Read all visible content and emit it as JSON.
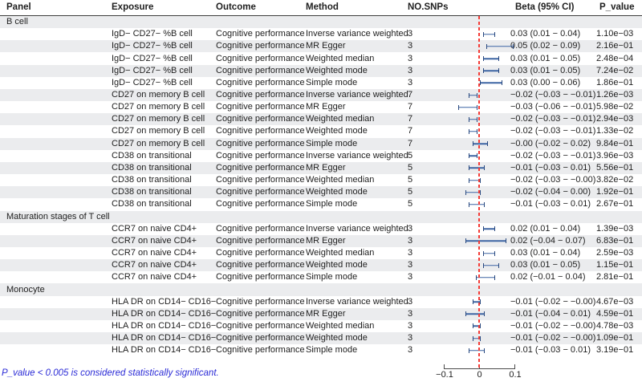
{
  "header": {
    "columns": [
      "Panel",
      "Exposure",
      "Outcome",
      "Method",
      "NO.SNPs",
      "Beta (95% CI)",
      "P_value"
    ]
  },
  "axis": {
    "min": -0.1,
    "max": 0.1,
    "ticks": [
      -0.1,
      0,
      0.1
    ],
    "tick_labels": [
      "−0.1",
      "0",
      "0.1"
    ],
    "reference_line_x": 0
  },
  "colors": {
    "whisker_bar": "#3d65a3",
    "whisker_cap": "#27477e",
    "reference_line": "#f53b36",
    "row_stripe": "#ebecee",
    "footnote_text": "#2a2ad6"
  },
  "footnote": "P_value < 0.005 is considered statistically significant.",
  "rows": [
    {
      "type": "panel",
      "panel": "B cell"
    },
    {
      "type": "data",
      "exposure": "IgD− CD27− %B cell",
      "outcome": "Cognitive performance",
      "method": "Inverse variance weighted",
      "nsnps": "3",
      "ci": [
        0.01,
        0.04
      ],
      "beta": 0.03,
      "beta_label": "0.03 (0.01 − 0.04)",
      "p": "1.10e−03"
    },
    {
      "type": "data",
      "exposure": "IgD− CD27− %B cell",
      "outcome": "Cognitive performance",
      "method": "MR Egger",
      "nsnps": "3",
      "ci": [
        0.02,
        0.09
      ],
      "beta": 0.05,
      "beta_label": "0.05 (0.02 − 0.09)",
      "p": "2.16e−01"
    },
    {
      "type": "data",
      "exposure": "IgD− CD27− %B cell",
      "outcome": "Cognitive performance",
      "method": "Weighted median",
      "nsnps": "3",
      "ci": [
        0.01,
        0.05
      ],
      "beta": 0.03,
      "beta_label": "0.03 (0.01 − 0.05)",
      "p": "2.48e−04"
    },
    {
      "type": "data",
      "exposure": "IgD− CD27− %B cell",
      "outcome": "Cognitive performance",
      "method": "Weighted mode",
      "nsnps": "3",
      "ci": [
        0.01,
        0.05
      ],
      "beta": 0.03,
      "beta_label": "0.03 (0.01 − 0.05)",
      "p": "7.24e−02"
    },
    {
      "type": "data",
      "exposure": "IgD− CD27− %B cell",
      "outcome": "Cognitive performance",
      "method": "Simple mode",
      "nsnps": "3",
      "ci": [
        0.0,
        0.06
      ],
      "beta": 0.03,
      "beta_label": "0.03 (0.00 − 0.06)",
      "p": "1.86e−01"
    },
    {
      "type": "data",
      "exposure": "CD27 on memory B cell",
      "outcome": "Cognitive performance",
      "method": "Inverse variance weighted",
      "nsnps": "7",
      "ci": [
        -0.03,
        -0.01
      ],
      "beta": -0.02,
      "beta_label": "−0.02 (−0.03 − −0.01)",
      "p": "1.26e−03"
    },
    {
      "type": "data",
      "exposure": "CD27 on memory B cell",
      "outcome": "Cognitive performance",
      "method": "MR Egger",
      "nsnps": "7",
      "ci": [
        -0.06,
        -0.01
      ],
      "beta": -0.03,
      "beta_label": "−0.03 (−0.06 − −0.01)",
      "p": "5.98e−02"
    },
    {
      "type": "data",
      "exposure": "CD27 on memory B cell",
      "outcome": "Cognitive performance",
      "method": "Weighted median",
      "nsnps": "7",
      "ci": [
        -0.03,
        -0.01
      ],
      "beta": -0.02,
      "beta_label": "−0.02 (−0.03 − −0.01)",
      "p": "2.94e−03"
    },
    {
      "type": "data",
      "exposure": "CD27 on memory B cell",
      "outcome": "Cognitive performance",
      "method": "Weighted mode",
      "nsnps": "7",
      "ci": [
        -0.03,
        -0.01
      ],
      "beta": -0.02,
      "beta_label": "−0.02 (−0.03 − −0.01)",
      "p": "1.33e−02"
    },
    {
      "type": "data",
      "exposure": "CD27 on memory B cell",
      "outcome": "Cognitive performance",
      "method": "Simple mode",
      "nsnps": "7",
      "ci": [
        -0.02,
        0.02
      ],
      "beta": 0.0,
      "beta_label": "−0.00 (−0.02 − 0.02)",
      "p": "9.84e−01"
    },
    {
      "type": "data",
      "exposure": "CD38 on transitional",
      "outcome": "Cognitive performance",
      "method": "Inverse variance weighted",
      "nsnps": "5",
      "ci": [
        -0.03,
        -0.01
      ],
      "beta": -0.02,
      "beta_label": "−0.02 (−0.03 − −0.01)",
      "p": "3.96e−03"
    },
    {
      "type": "data",
      "exposure": "CD38 on transitional",
      "outcome": "Cognitive performance",
      "method": "MR Egger",
      "nsnps": "5",
      "ci": [
        -0.03,
        0.01
      ],
      "beta": -0.01,
      "beta_label": "−0.01 (−0.03 − 0.01)",
      "p": "5.56e−01"
    },
    {
      "type": "data",
      "exposure": "CD38 on transitional",
      "outcome": "Cognitive performance",
      "method": "Weighted median",
      "nsnps": "5",
      "ci": [
        -0.03,
        0.0
      ],
      "beta": -0.02,
      "beta_label": "−0.02 (−0.03 − −0.00)",
      "p": "3.82e−02"
    },
    {
      "type": "data",
      "exposure": "CD38 on transitional",
      "outcome": "Cognitive performance",
      "method": "Weighted mode",
      "nsnps": "5",
      "ci": [
        -0.04,
        0.0
      ],
      "beta": -0.02,
      "beta_label": "−0.02 (−0.04 − 0.00)",
      "p": "1.92e−01"
    },
    {
      "type": "data",
      "exposure": "CD38 on transitional",
      "outcome": "Cognitive performance",
      "method": "Simple mode",
      "nsnps": "5",
      "ci": [
        -0.03,
        0.01
      ],
      "beta": -0.01,
      "beta_label": "−0.01 (−0.03 − 0.01)",
      "p": "2.67e−01"
    },
    {
      "type": "panel",
      "panel": "Maturation stages of T cell"
    },
    {
      "type": "data",
      "exposure": "CCR7 on naive CD4+",
      "outcome": "Cognitive performance",
      "method": "Inverse variance weighted",
      "nsnps": "3",
      "ci": [
        0.01,
        0.04
      ],
      "beta": 0.02,
      "beta_label": "0.02 (0.01 − 0.04)",
      "p": "1.39e−03"
    },
    {
      "type": "data",
      "exposure": "CCR7 on naive CD4+",
      "outcome": "Cognitive performance",
      "method": "MR Egger",
      "nsnps": "3",
      "ci": [
        -0.04,
        0.07
      ],
      "beta": 0.02,
      "beta_label": "0.02 (−0.04 − 0.07)",
      "p": "6.83e−01"
    },
    {
      "type": "data",
      "exposure": "CCR7 on naive CD4+",
      "outcome": "Cognitive performance",
      "method": "Weighted median",
      "nsnps": "3",
      "ci": [
        0.01,
        0.04
      ],
      "beta": 0.03,
      "beta_label": "0.03 (0.01 − 0.04)",
      "p": "2.59e−03"
    },
    {
      "type": "data",
      "exposure": "CCR7 on naive CD4+",
      "outcome": "Cognitive performance",
      "method": "Weighted mode",
      "nsnps": "3",
      "ci": [
        0.01,
        0.05
      ],
      "beta": 0.03,
      "beta_label": "0.03 (0.01 − 0.05)",
      "p": "1.15e−01"
    },
    {
      "type": "data",
      "exposure": "CCR7 on naive CD4+",
      "outcome": "Cognitive performance",
      "method": "Simple mode",
      "nsnps": "3",
      "ci": [
        -0.01,
        0.04
      ],
      "beta": 0.02,
      "beta_label": "0.02 (−0.01 − 0.04)",
      "p": "2.81e−01"
    },
    {
      "type": "panel",
      "panel": "Monocyte"
    },
    {
      "type": "data",
      "exposure": "HLA DR on CD14− CD16−",
      "outcome": "Cognitive performance",
      "method": "Inverse variance weighted",
      "nsnps": "3",
      "ci": [
        -0.02,
        0.0
      ],
      "beta": -0.01,
      "beta_label": "−0.01 (−0.02 − −0.00)",
      "p": "4.67e−03"
    },
    {
      "type": "data",
      "exposure": "HLA DR on CD14− CD16−",
      "outcome": "Cognitive performance",
      "method": "MR Egger",
      "nsnps": "3",
      "ci": [
        -0.04,
        0.01
      ],
      "beta": -0.01,
      "beta_label": "−0.01 (−0.04 − 0.01)",
      "p": "4.59e−01"
    },
    {
      "type": "data",
      "exposure": "HLA DR on CD14− CD16−",
      "outcome": "Cognitive performance",
      "method": "Weighted median",
      "nsnps": "3",
      "ci": [
        -0.02,
        0.0
      ],
      "beta": -0.01,
      "beta_label": "−0.01 (−0.02 − −0.00)",
      "p": "4.78e−03"
    },
    {
      "type": "data",
      "exposure": "HLA DR on CD14− CD16−",
      "outcome": "Cognitive performance",
      "method": "Weighted mode",
      "nsnps": "3",
      "ci": [
        -0.02,
        0.0
      ],
      "beta": -0.01,
      "beta_label": "−0.01 (−0.02 − −0.00)",
      "p": "1.09e−01"
    },
    {
      "type": "data",
      "exposure": "HLA DR on CD14− CD16−",
      "outcome": "Cognitive performance",
      "method": "Simple mode",
      "nsnps": "3",
      "ci": [
        -0.03,
        0.01
      ],
      "beta": -0.01,
      "beta_label": "−0.01 (−0.03 − 0.01)",
      "p": "3.19e−01"
    }
  ],
  "chart_data": {
    "type": "forest",
    "title": "",
    "xlabel": "",
    "xlim": [
      -0.1,
      0.1
    ],
    "x_ticks": [
      -0.1,
      0,
      0.1
    ],
    "reference_line": 0,
    "grid": false,
    "groups": [
      {
        "panel": "B cell",
        "entries": [
          {
            "exposure": "IgD− CD27− %B cell",
            "outcome": "Cognitive performance",
            "method": "Inverse variance weighted",
            "no_snps": 3,
            "beta": 0.03,
            "ci_low": 0.01,
            "ci_high": 0.04,
            "p_value": "1.10e−03"
          },
          {
            "exposure": "IgD− CD27− %B cell",
            "outcome": "Cognitive performance",
            "method": "MR Egger",
            "no_snps": 3,
            "beta": 0.05,
            "ci_low": 0.02,
            "ci_high": 0.09,
            "p_value": "2.16e−01"
          },
          {
            "exposure": "IgD− CD27− %B cell",
            "outcome": "Cognitive performance",
            "method": "Weighted median",
            "no_snps": 3,
            "beta": 0.03,
            "ci_low": 0.01,
            "ci_high": 0.05,
            "p_value": "2.48e−04"
          },
          {
            "exposure": "IgD− CD27− %B cell",
            "outcome": "Cognitive performance",
            "method": "Weighted mode",
            "no_snps": 3,
            "beta": 0.03,
            "ci_low": 0.01,
            "ci_high": 0.05,
            "p_value": "7.24e−02"
          },
          {
            "exposure": "IgD− CD27− %B cell",
            "outcome": "Cognitive performance",
            "method": "Simple mode",
            "no_snps": 3,
            "beta": 0.03,
            "ci_low": 0.0,
            "ci_high": 0.06,
            "p_value": "1.86e−01"
          },
          {
            "exposure": "CD27 on memory B cell",
            "outcome": "Cognitive performance",
            "method": "Inverse variance weighted",
            "no_snps": 7,
            "beta": -0.02,
            "ci_low": -0.03,
            "ci_high": -0.01,
            "p_value": "1.26e−03"
          },
          {
            "exposure": "CD27 on memory B cell",
            "outcome": "Cognitive performance",
            "method": "MR Egger",
            "no_snps": 7,
            "beta": -0.03,
            "ci_low": -0.06,
            "ci_high": -0.01,
            "p_value": "5.98e−02"
          },
          {
            "exposure": "CD27 on memory B cell",
            "outcome": "Cognitive performance",
            "method": "Weighted median",
            "no_snps": 7,
            "beta": -0.02,
            "ci_low": -0.03,
            "ci_high": -0.01,
            "p_value": "2.94e−03"
          },
          {
            "exposure": "CD27 on memory B cell",
            "outcome": "Cognitive performance",
            "method": "Weighted mode",
            "no_snps": 7,
            "beta": -0.02,
            "ci_low": -0.03,
            "ci_high": -0.01,
            "p_value": "1.33e−02"
          },
          {
            "exposure": "CD27 on memory B cell",
            "outcome": "Cognitive performance",
            "method": "Simple mode",
            "no_snps": 7,
            "beta": 0.0,
            "ci_low": -0.02,
            "ci_high": 0.02,
            "p_value": "9.84e−01"
          },
          {
            "exposure": "CD38 on transitional",
            "outcome": "Cognitive performance",
            "method": "Inverse variance weighted",
            "no_snps": 5,
            "beta": -0.02,
            "ci_low": -0.03,
            "ci_high": -0.01,
            "p_value": "3.96e−03"
          },
          {
            "exposure": "CD38 on transitional",
            "outcome": "Cognitive performance",
            "method": "MR Egger",
            "no_snps": 5,
            "beta": -0.01,
            "ci_low": -0.03,
            "ci_high": 0.01,
            "p_value": "5.56e−01"
          },
          {
            "exposure": "CD38 on transitional",
            "outcome": "Cognitive performance",
            "method": "Weighted median",
            "no_snps": 5,
            "beta": -0.02,
            "ci_low": -0.03,
            "ci_high": 0.0,
            "p_value": "3.82e−02"
          },
          {
            "exposure": "CD38 on transitional",
            "outcome": "Cognitive performance",
            "method": "Weighted mode",
            "no_snps": 5,
            "beta": -0.02,
            "ci_low": -0.04,
            "ci_high": 0.0,
            "p_value": "1.92e−01"
          },
          {
            "exposure": "CD38 on transitional",
            "outcome": "Cognitive performance",
            "method": "Simple mode",
            "no_snps": 5,
            "beta": -0.01,
            "ci_low": -0.03,
            "ci_high": 0.01,
            "p_value": "2.67e−01"
          }
        ]
      },
      {
        "panel": "Maturation stages of T cell",
        "entries": [
          {
            "exposure": "CCR7 on naive CD4+",
            "outcome": "Cognitive performance",
            "method": "Inverse variance weighted",
            "no_snps": 3,
            "beta": 0.02,
            "ci_low": 0.01,
            "ci_high": 0.04,
            "p_value": "1.39e−03"
          },
          {
            "exposure": "CCR7 on naive CD4+",
            "outcome": "Cognitive performance",
            "method": "MR Egger",
            "no_snps": 3,
            "beta": 0.02,
            "ci_low": -0.04,
            "ci_high": 0.07,
            "p_value": "6.83e−01"
          },
          {
            "exposure": "CCR7 on naive CD4+",
            "outcome": "Cognitive performance",
            "method": "Weighted median",
            "no_snps": 3,
            "beta": 0.03,
            "ci_low": 0.01,
            "ci_high": 0.04,
            "p_value": "2.59e−03"
          },
          {
            "exposure": "CCR7 on naive CD4+",
            "outcome": "Cognitive performance",
            "method": "Weighted mode",
            "no_snps": 3,
            "beta": 0.03,
            "ci_low": 0.01,
            "ci_high": 0.05,
            "p_value": "1.15e−01"
          },
          {
            "exposure": "CCR7 on naive CD4+",
            "outcome": "Cognitive performance",
            "method": "Simple mode",
            "no_snps": 3,
            "beta": 0.02,
            "ci_low": -0.01,
            "ci_high": 0.04,
            "p_value": "2.81e−01"
          }
        ]
      },
      {
        "panel": "Monocyte",
        "entries": [
          {
            "exposure": "HLA DR on CD14− CD16−",
            "outcome": "Cognitive performance",
            "method": "Inverse variance weighted",
            "no_snps": 3,
            "beta": -0.01,
            "ci_low": -0.02,
            "ci_high": 0.0,
            "p_value": "4.67e−03"
          },
          {
            "exposure": "HLA DR on CD14− CD16−",
            "outcome": "Cognitive performance",
            "method": "MR Egger",
            "no_snps": 3,
            "beta": -0.01,
            "ci_low": -0.04,
            "ci_high": 0.01,
            "p_value": "4.59e−01"
          },
          {
            "exposure": "HLA DR on CD14− CD16−",
            "outcome": "Cognitive performance",
            "method": "Weighted median",
            "no_snps": 3,
            "beta": -0.01,
            "ci_low": -0.02,
            "ci_high": 0.0,
            "p_value": "4.78e−03"
          },
          {
            "exposure": "HLA DR on CD14− CD16−",
            "outcome": "Cognitive performance",
            "method": "Weighted mode",
            "no_snps": 3,
            "beta": -0.01,
            "ci_low": -0.02,
            "ci_high": 0.0,
            "p_value": "1.09e−01"
          },
          {
            "exposure": "HLA DR on CD14− CD16−",
            "outcome": "Cognitive performance",
            "method": "Simple mode",
            "no_snps": 3,
            "beta": -0.01,
            "ci_low": -0.03,
            "ci_high": 0.01,
            "p_value": "3.19e−01"
          }
        ]
      }
    ]
  }
}
